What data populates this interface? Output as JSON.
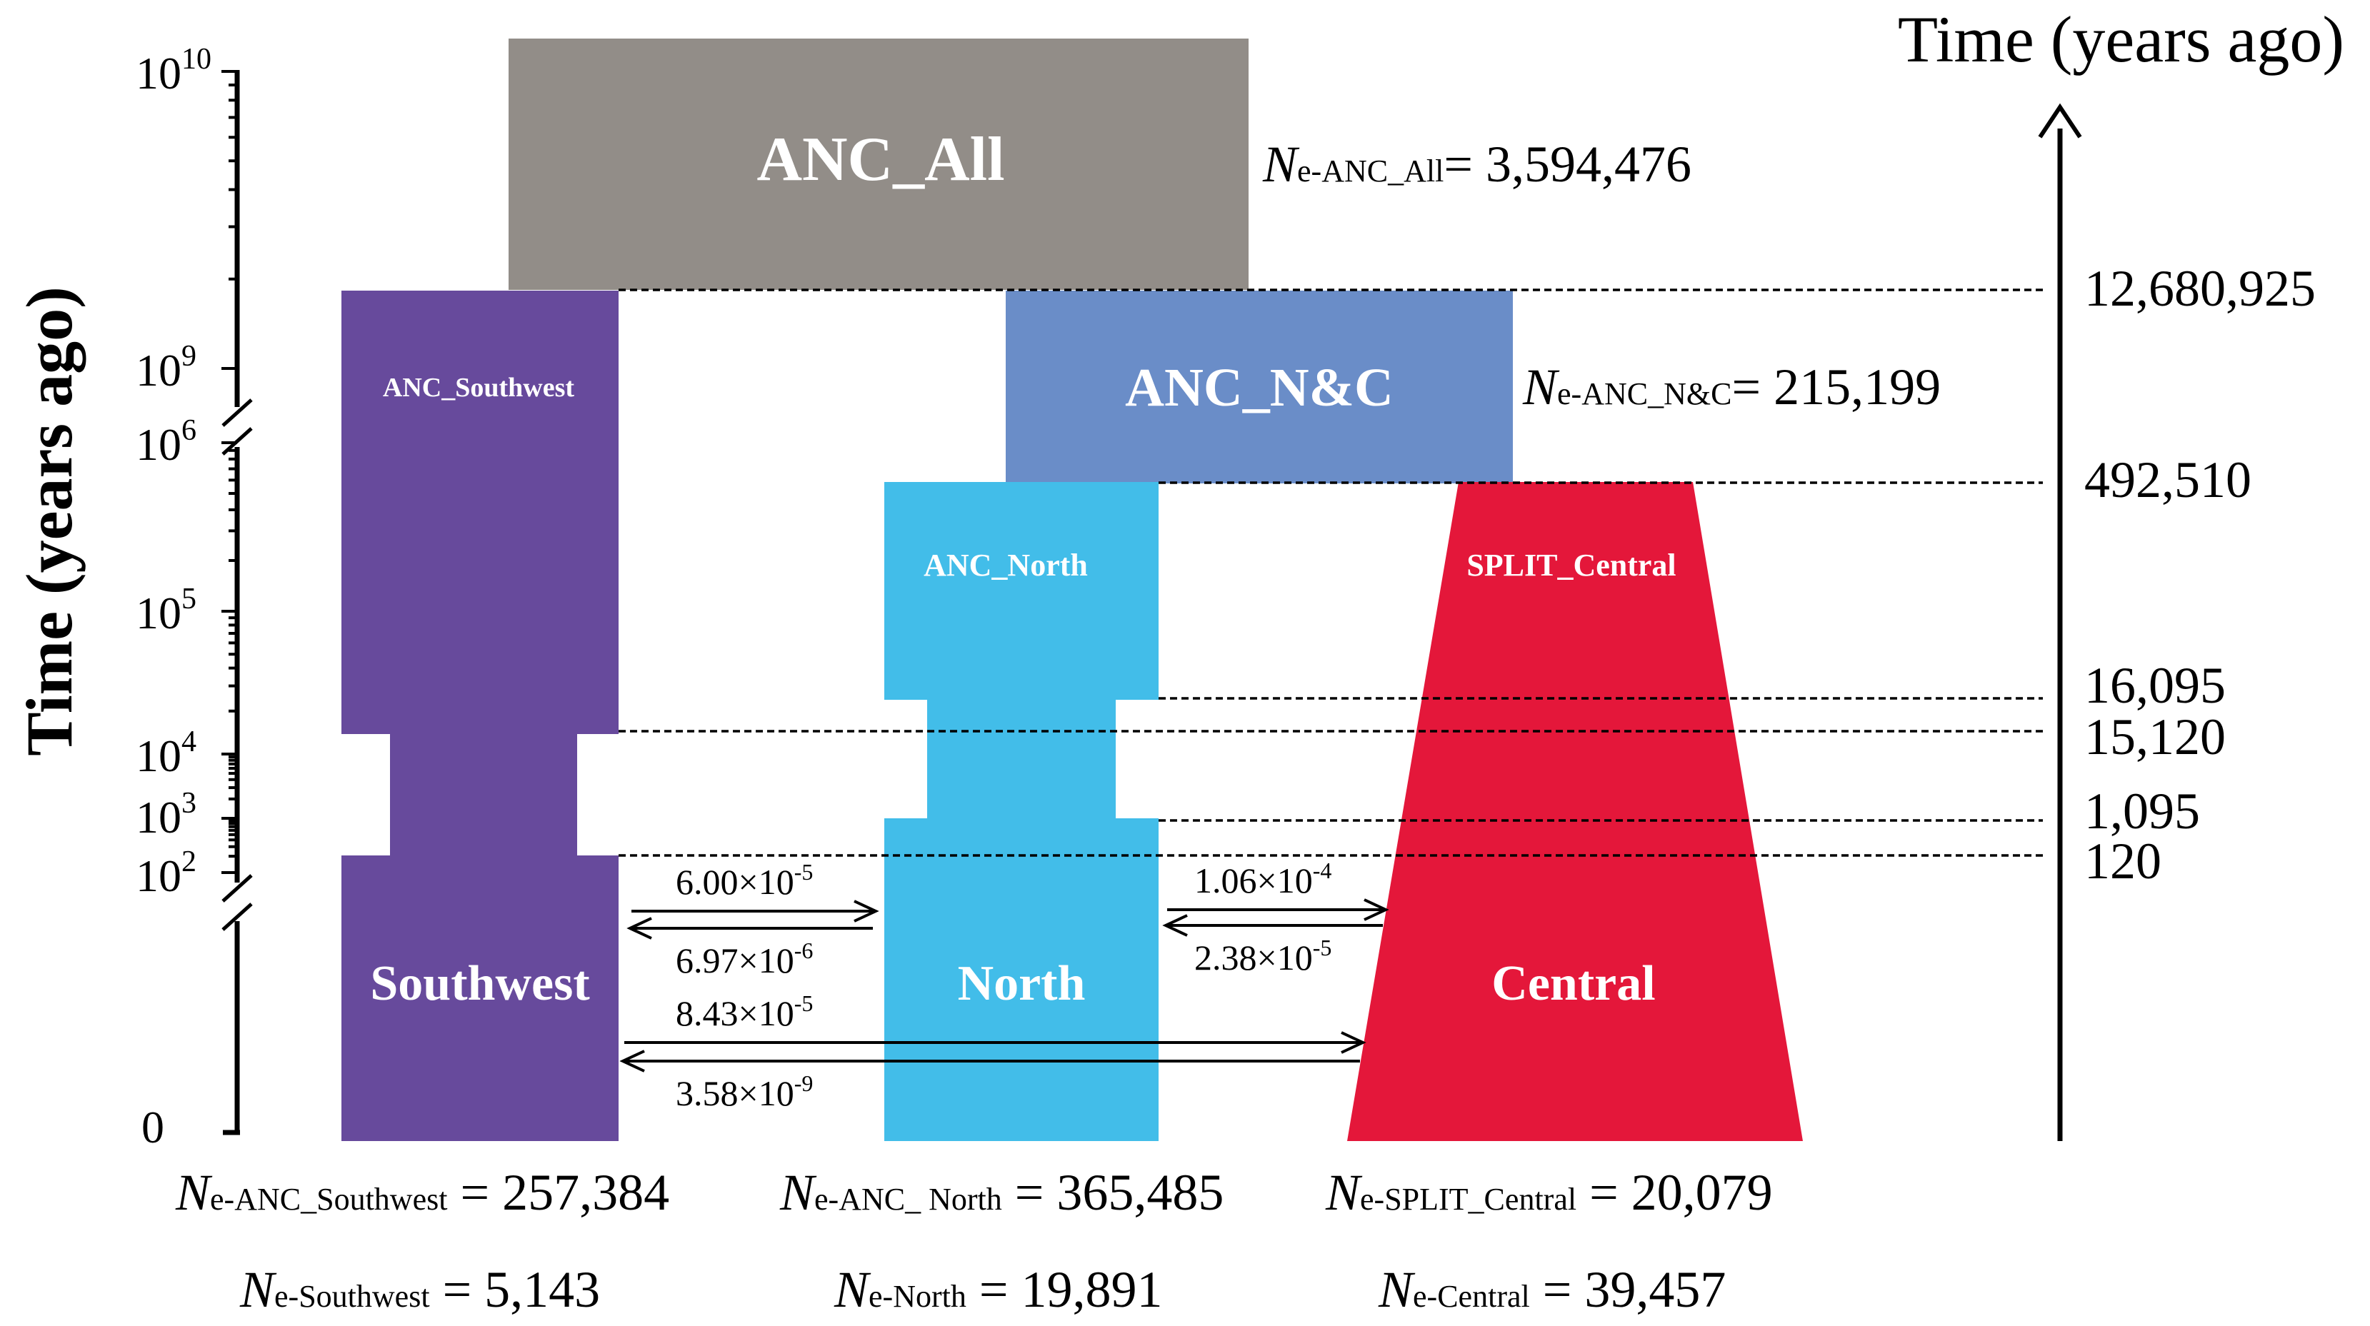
{
  "colors": {
    "anc_all": "#928d88",
    "anc_nc": "#6a8dc8",
    "southwest": "#674a9c",
    "north": "#42bde9",
    "central": "#e4173a"
  },
  "left_axis": {
    "title": "Time (years ago)",
    "base": "10",
    "exp_10": "10",
    "exp_9": "9",
    "exp_6": "6",
    "exp_5": "5",
    "exp_4": "4",
    "exp_3": "3",
    "exp_2": "2",
    "zero": "0"
  },
  "right_axis": {
    "title": "Time (years ago)",
    "ticks": [
      "12,680,925",
      "492,510",
      "16,095",
      "15,120",
      "1,095",
      "120"
    ]
  },
  "populations": {
    "anc_all": "ANC_All",
    "anc_nc": "ANC_N&C",
    "anc_southwest": "ANC_Southwest",
    "anc_north": "ANC_North",
    "split_central": "SPLIT_Central",
    "southwest": "Southwest",
    "north": "North",
    "central": "Central"
  },
  "ne_symbol": "N",
  "ne_labels": {
    "anc_all": {
      "sub": "e-ANC_All",
      "value": "= 3,594,476"
    },
    "anc_nc": {
      "sub": "e-ANC_N&C",
      "value": "= 215,199"
    },
    "anc_southwest": {
      "sub": "e-ANC_Southwest",
      "value": " = 257,384"
    },
    "anc_north": {
      "sub": "e-ANC_ North",
      "value": " = 365,485"
    },
    "split_central": {
      "sub": "e-SPLIT_Central",
      "value": " = 20,079"
    },
    "southwest": {
      "sub": "e-Southwest",
      "value": " = 5,143"
    },
    "north": {
      "sub": "e-North",
      "value": " = 19,891"
    },
    "central": {
      "sub": "e-Central",
      "value": " = 39,457"
    }
  },
  "migration": {
    "sw_to_n": {
      "mant": "6.00×10",
      "exp": "-5"
    },
    "n_to_sw": {
      "mant": "6.97×10",
      "exp": "-6"
    },
    "n_to_c": {
      "mant": "1.06×10",
      "exp": "-4"
    },
    "c_to_n": {
      "mant": "2.38×10",
      "exp": "-5"
    },
    "sw_to_c": {
      "mant": "8.43×10",
      "exp": "-5"
    },
    "c_to_sw": {
      "mant": "3.58×10",
      "exp": "-9"
    }
  }
}
